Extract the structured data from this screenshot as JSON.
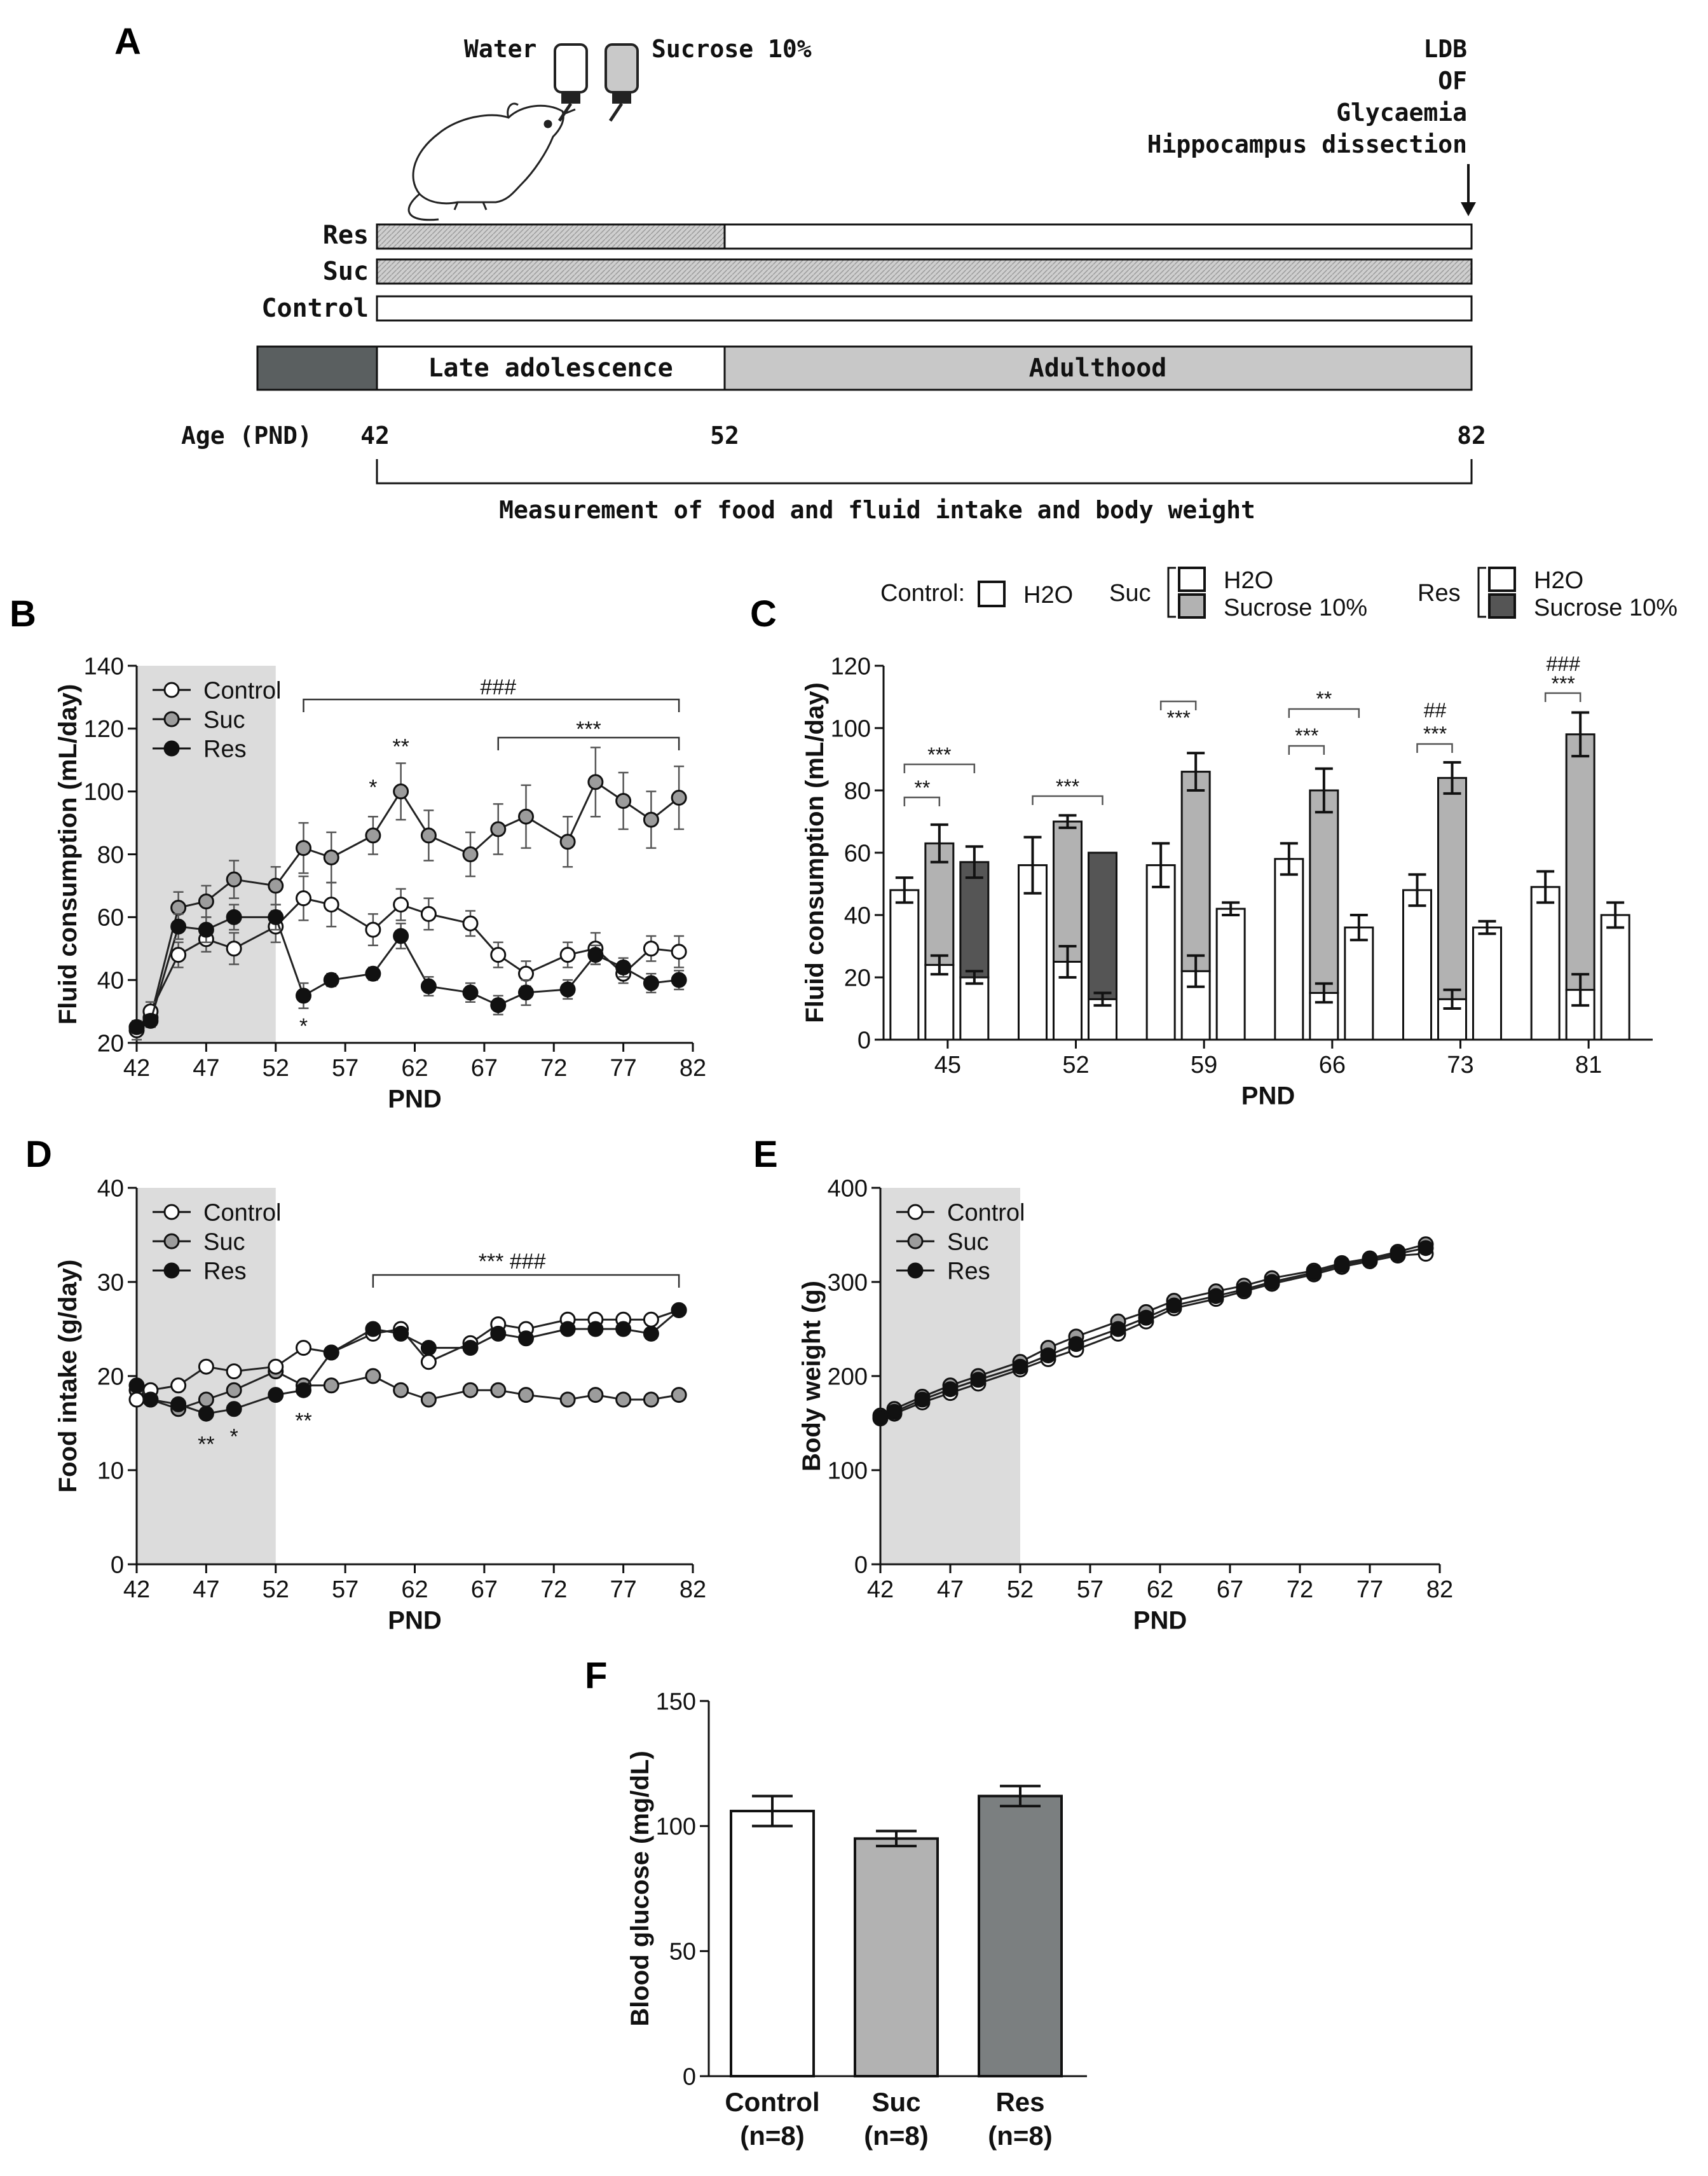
{
  "panels": {
    "a": "A",
    "b": "B",
    "c": "C",
    "d": "D",
    "e": "E",
    "f": "F"
  },
  "timeline": {
    "water": "Water",
    "sucrose": "Sucrose 10%",
    "endpoints": [
      "LDB",
      "OF",
      "Glycaemia",
      "Hippocampus dissection"
    ],
    "rows": [
      "Res",
      "Suc",
      "Control"
    ],
    "phases": [
      "Late adolescence",
      "Adulthood"
    ],
    "age_label": "Age (PND)",
    "ages": [
      "42",
      "52",
      "82"
    ],
    "measurement": "Measurement of food and fluid intake and body weight"
  },
  "colors": {
    "control": "#ffffff",
    "suc": "#a9a9a9",
    "res": "#111111",
    "shade": "#dcdcdc",
    "res_bar": "#555555",
    "suc_bar": "#b2b2b2",
    "res_f": "#7b7f80"
  },
  "chart_data": [
    {
      "id": "B",
      "type": "line",
      "ylabel": "Fluid consumption (mL/day)",
      "xlabel": "PND",
      "xlim": [
        42,
        82
      ],
      "ylim": [
        20,
        140
      ],
      "xticks": [
        "42",
        "47",
        "52",
        "57",
        "62",
        "67",
        "72",
        "77",
        "82"
      ],
      "yticks": [
        "20",
        "40",
        "60",
        "80",
        "100",
        "120",
        "140"
      ],
      "legend": [
        "Control",
        "Suc",
        "Res"
      ],
      "shaded_x": [
        42,
        52
      ],
      "x": [
        42,
        43,
        45,
        47,
        49,
        52,
        54,
        56,
        59,
        61,
        63,
        66,
        68,
        70,
        73,
        75,
        77,
        79,
        81
      ],
      "series": [
        {
          "name": "Control",
          "values": [
            24,
            30,
            48,
            53,
            50,
            57,
            66,
            64,
            56,
            64,
            61,
            58,
            48,
            42,
            48,
            50,
            42,
            50,
            49
          ],
          "err": [
            3,
            3,
            4,
            4,
            5,
            5,
            7,
            7,
            5,
            5,
            5,
            4,
            4,
            4,
            4,
            5,
            3,
            4,
            5
          ]
        },
        {
          "name": "Suc",
          "values": [
            25,
            28,
            63,
            65,
            72,
            70,
            82,
            79,
            86,
            100,
            86,
            80,
            88,
            92,
            84,
            103,
            97,
            91,
            98
          ],
          "err": [
            2,
            3,
            5,
            5,
            6,
            6,
            8,
            8,
            6,
            9,
            8,
            7,
            8,
            10,
            8,
            11,
            9,
            9,
            10
          ]
        },
        {
          "name": "Res",
          "values": [
            25,
            27,
            57,
            56,
            60,
            60,
            35,
            40,
            42,
            54,
            38,
            36,
            32,
            36,
            37,
            48,
            44,
            39,
            40
          ],
          "err": [
            2,
            2,
            4,
            4,
            4,
            4,
            4,
            2,
            2,
            4,
            3,
            3,
            3,
            4,
            3,
            3,
            3,
            3,
            3
          ]
        }
      ],
      "annotations": [
        "###",
        "***",
        "**",
        "*",
        "*"
      ]
    },
    {
      "id": "C",
      "type": "bar",
      "ylabel": "Fluid consumption (mL/day)",
      "xlabel": "PND",
      "ylim": [
        0,
        120
      ],
      "yticks": [
        "0",
        "20",
        "40",
        "60",
        "80",
        "100",
        "120"
      ],
      "categories": [
        "45",
        "52",
        "59",
        "66",
        "73",
        "81"
      ],
      "legend": {
        "control_label": "Control:",
        "suc_label": "Suc",
        "res_label": "Res",
        "water": "H2O",
        "sucrose": "Sucrose 10%"
      },
      "control": [
        48,
        56,
        56,
        58,
        48,
        49
      ],
      "control_err": [
        4,
        9,
        7,
        5,
        5,
        5
      ],
      "suc_water": [
        24,
        25,
        22,
        15,
        13,
        16
      ],
      "suc_water_err": [
        3,
        5,
        5,
        3,
        3,
        5
      ],
      "suc_total": [
        63,
        70,
        86,
        80,
        84,
        98
      ],
      "suc_total_err": [
        6,
        2,
        6,
        7,
        5,
        7
      ],
      "res_water": [
        20,
        13,
        42,
        36,
        36,
        40
      ],
      "res_water_err": [
        2,
        2,
        2,
        4,
        2,
        4
      ],
      "res_total": [
        57,
        60,
        null,
        null,
        null,
        null
      ],
      "res_total_err": [
        5,
        0,
        null,
        null,
        null,
        null
      ],
      "annotations": [
        "**",
        "***",
        "***",
        "***",
        "**",
        "***",
        "##",
        "***",
        "###",
        "***"
      ]
    },
    {
      "id": "D",
      "type": "line",
      "ylabel": "Food intake (g/day)",
      "xlabel": "PND",
      "xlim": [
        42,
        82
      ],
      "ylim": [
        0,
        40
      ],
      "xticks": [
        "42",
        "47",
        "52",
        "57",
        "62",
        "67",
        "72",
        "77",
        "82"
      ],
      "yticks": [
        "0",
        "10",
        "20",
        "30",
        "40"
      ],
      "legend": [
        "Control",
        "Suc",
        "Res"
      ],
      "shaded_x": [
        42,
        52
      ],
      "x": [
        42,
        43,
        45,
        47,
        49,
        52,
        54,
        56,
        59,
        61,
        63,
        66,
        68,
        70,
        73,
        75,
        77,
        79,
        81
      ],
      "series": [
        {
          "name": "Control",
          "values": [
            17.5,
            18.5,
            19,
            21,
            20.5,
            21,
            23,
            22.5,
            24.5,
            25,
            21.5,
            23.5,
            25.5,
            25,
            26,
            26,
            26,
            26,
            27
          ]
        },
        {
          "name": "Suc",
          "values": [
            18.5,
            17.5,
            16.5,
            17.5,
            18.5,
            20.5,
            19,
            19,
            20,
            18.5,
            17.5,
            18.5,
            18.5,
            18,
            17.5,
            18,
            17.5,
            17.5,
            18
          ]
        },
        {
          "name": "Res",
          "values": [
            19,
            17.5,
            17,
            16,
            16.5,
            18,
            18.5,
            22.5,
            25,
            24.5,
            23,
            23,
            24.5,
            24,
            25,
            25,
            25,
            24.5,
            27
          ]
        }
      ],
      "annotations": [
        "***  ###",
        "**",
        "*",
        "**"
      ]
    },
    {
      "id": "E",
      "type": "line",
      "ylabel": "Body weight (g)",
      "xlabel": "PND",
      "xlim": [
        42,
        82
      ],
      "ylim": [
        0,
        400
      ],
      "xticks": [
        "42",
        "47",
        "52",
        "57",
        "62",
        "67",
        "72",
        "77",
        "82"
      ],
      "yticks": [
        "0",
        "100",
        "200",
        "300",
        "400"
      ],
      "legend": [
        "Control",
        "Suc",
        "Res"
      ],
      "shaded_x": [
        42,
        52
      ],
      "x": [
        42,
        43,
        45,
        47,
        49,
        52,
        54,
        56,
        59,
        61,
        63,
        66,
        68,
        70,
        73,
        75,
        77,
        79,
        81
      ],
      "series": [
        {
          "name": "Control",
          "values": [
            155,
            160,
            172,
            182,
            192,
            207,
            218,
            228,
            245,
            258,
            272,
            282,
            290,
            298,
            308,
            316,
            322,
            328,
            330
          ]
        },
        {
          "name": "Suc",
          "values": [
            158,
            165,
            178,
            190,
            200,
            215,
            230,
            242,
            258,
            268,
            280,
            290,
            296,
            304,
            312,
            320,
            325,
            332,
            340
          ]
        },
        {
          "name": "Res",
          "values": [
            156,
            162,
            175,
            186,
            196,
            210,
            222,
            234,
            250,
            262,
            275,
            285,
            292,
            300,
            310,
            318,
            324,
            330,
            336
          ]
        }
      ]
    },
    {
      "id": "F",
      "type": "bar",
      "ylabel": "Blood glucose (mg/dL)",
      "ylim": [
        0,
        150
      ],
      "yticks": [
        "0",
        "50",
        "100",
        "150"
      ],
      "categories": [
        "Control",
        "Suc",
        "Res"
      ],
      "sublabels": [
        "(n=8)",
        "(n=8)",
        "(n=8)"
      ],
      "values": [
        106,
        95,
        112
      ],
      "err": [
        6,
        3,
        4
      ]
    }
  ]
}
